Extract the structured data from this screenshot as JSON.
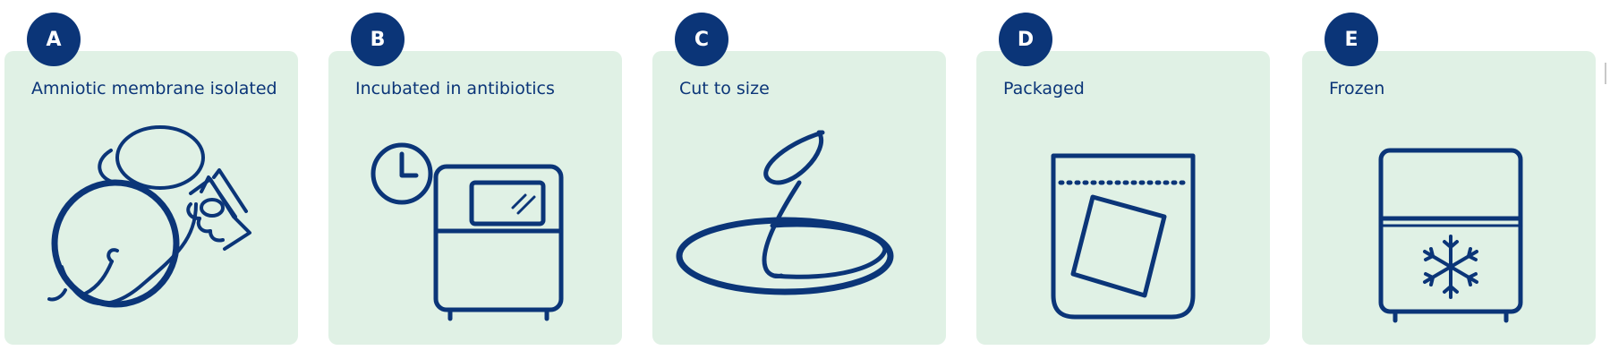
{
  "colors": {
    "accent": "#0b3578",
    "card": "#e0f1e5",
    "background": "#ffffff"
  },
  "steps": [
    {
      "letter": "A",
      "label": "Amniotic membrane isolated",
      "icon": "hands-holding-membrane-icon"
    },
    {
      "letter": "B",
      "label": "Incubated in antibiotics",
      "icon": "incubator-timer-icon"
    },
    {
      "letter": "C",
      "label": "Cut to size",
      "icon": "petri-dish-membrane-icon"
    },
    {
      "letter": "D",
      "label": "Packaged",
      "icon": "sealed-bag-icon"
    },
    {
      "letter": "E",
      "label": "Frozen",
      "icon": "freezer-snowflake-icon"
    }
  ]
}
